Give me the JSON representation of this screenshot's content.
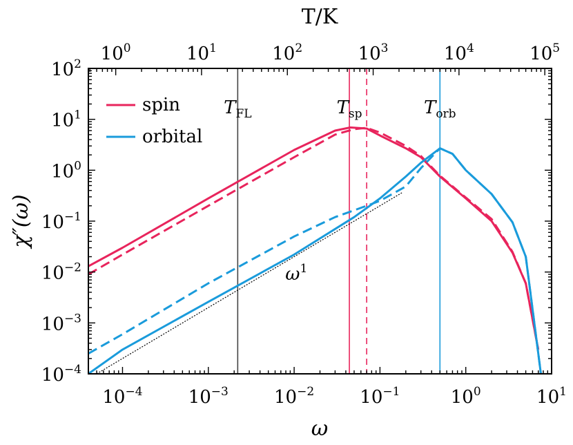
{
  "chart_data": {
    "type": "line",
    "xscale": "log",
    "yscale": "log",
    "xlabel": "ω",
    "ylabel": "χ″(ω)",
    "top_xlabel": "T/K",
    "xlim": [
      4e-05,
      10
    ],
    "ylim": [
      0.0001,
      100
    ],
    "top_xlim": [
      0.48,
      120000
    ],
    "x_ticks": [
      {
        "value": 0.0001,
        "base": "10",
        "exp": "−4"
      },
      {
        "value": 0.001,
        "base": "10",
        "exp": "−3"
      },
      {
        "value": 0.01,
        "base": "10",
        "exp": "−2"
      },
      {
        "value": 0.1,
        "base": "10",
        "exp": "−1"
      },
      {
        "value": 1,
        "base": "10",
        "exp": "0"
      },
      {
        "value": 10,
        "base": "10",
        "exp": "1"
      }
    ],
    "y_ticks": [
      {
        "value": 0.0001,
        "base": "10",
        "exp": "−4"
      },
      {
        "value": 0.001,
        "base": "10",
        "exp": "−3"
      },
      {
        "value": 0.01,
        "base": "10",
        "exp": "−2"
      },
      {
        "value": 0.1,
        "base": "10",
        "exp": "−1"
      },
      {
        "value": 1,
        "base": "10",
        "exp": "0"
      },
      {
        "value": 10,
        "base": "10",
        "exp": "1"
      },
      {
        "value": 100,
        "base": "10",
        "exp": "2"
      }
    ],
    "top_ticks": [
      {
        "value": 1,
        "base": "10",
        "exp": "0"
      },
      {
        "value": 10,
        "base": "10",
        "exp": "1"
      },
      {
        "value": 100,
        "base": "10",
        "exp": "2"
      },
      {
        "value": 1000,
        "base": "10",
        "exp": "3"
      },
      {
        "value": 10000,
        "base": "10",
        "exp": "4"
      },
      {
        "value": 100000,
        "base": "10",
        "exp": "5"
      }
    ],
    "legend": {
      "position": "top-left",
      "entries": [
        {
          "label": "spin",
          "color": "#E8245C"
        },
        {
          "label": "orbital",
          "color": "#1A9BDB"
        }
      ]
    },
    "series": [
      {
        "name": "spin",
        "style": "solid",
        "color": "#E8245C",
        "x": [
          4e-05,
          0.0001,
          0.001,
          0.01,
          0.03,
          0.045,
          0.07,
          0.1,
          0.2,
          0.3,
          0.5,
          1,
          2,
          3.5,
          5,
          7
        ],
        "y": [
          0.013,
          0.03,
          0.28,
          2.5,
          6.0,
          6.9,
          6.6,
          4.8,
          2.7,
          1.8,
          0.75,
          0.28,
          0.1,
          0.024,
          0.006,
          0.0003
        ]
      },
      {
        "name": "spin",
        "style": "dashed",
        "color": "#E8245C",
        "x": [
          4e-05,
          0.0001,
          0.001,
          0.01,
          0.03,
          0.05,
          0.07,
          0.1,
          0.2,
          0.3,
          0.5,
          1,
          2,
          3.5,
          5,
          7
        ],
        "y": [
          0.009,
          0.022,
          0.2,
          1.8,
          5.0,
          6.4,
          6.8,
          5.5,
          3.0,
          1.9,
          0.78,
          0.29,
          0.11,
          0.025,
          0.006,
          0.0003
        ]
      },
      {
        "name": "orbital",
        "style": "solid",
        "color": "#1A9BDB",
        "x": [
          4e-05,
          0.0001,
          0.001,
          0.01,
          0.05,
          0.1,
          0.2,
          0.3,
          0.5,
          0.7,
          1,
          2,
          3.5,
          5,
          7.5
        ],
        "y": [
          0.0001,
          0.0003,
          0.0026,
          0.022,
          0.12,
          0.28,
          0.75,
          1.4,
          2.7,
          2.1,
          1.0,
          0.34,
          0.095,
          0.02,
          0.0001
        ]
      },
      {
        "name": "orbital",
        "style": "dashed",
        "color": "#1A9BDB",
        "x": [
          4e-05,
          0.0001,
          0.001,
          0.01,
          0.03,
          0.07,
          0.1,
          0.2,
          0.3,
          0.5,
          0.7,
          1,
          2,
          3.5,
          5,
          7.5
        ],
        "y": [
          0.00025,
          0.0006,
          0.006,
          0.05,
          0.12,
          0.2,
          0.25,
          0.48,
          1.1,
          2.7,
          2.1,
          1.0,
          0.34,
          0.095,
          0.02,
          0.0001
        ]
      },
      {
        "name": "ω^1 guide",
        "style": "dotted",
        "color": "#000000",
        "x": [
          5e-05,
          0.18
        ],
        "y": [
          0.0001,
          0.36
        ]
      }
    ],
    "vertical_lines": [
      {
        "x": 0.0022,
        "label": "T",
        "sub": "FL",
        "color": "#444444",
        "style": "solid"
      },
      {
        "x": 0.044,
        "label": "T",
        "sub": "sp",
        "color": "#E8245C",
        "style": "solid"
      },
      {
        "x": 0.07,
        "label": "",
        "sub": "",
        "color": "#E8245C",
        "style": "dashed"
      },
      {
        "x": 0.5,
        "label": "T",
        "sub": "orb",
        "color": "#1A9BDB",
        "style": "solid"
      }
    ],
    "annotation": {
      "text": "ω",
      "exp": "1",
      "x": 0.0025,
      "y": 0.009
    }
  }
}
